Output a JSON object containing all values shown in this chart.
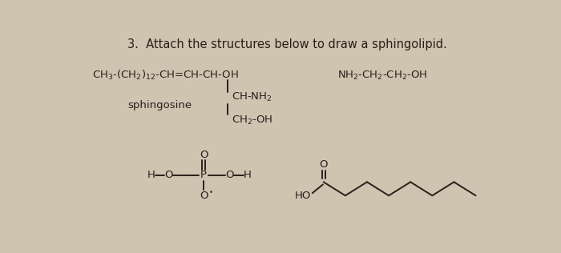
{
  "title": "3.  Attach the structures below to draw a sphingolipid.",
  "bg_color": "#cfc4b0",
  "text_color": "#2a1f1a",
  "title_fontsize": 10.5,
  "label_fontsize": 9.5,
  "sphingosine_label": "sphingosine",
  "ethanolamine": "NH₂-CH₂-CH₂-OH",
  "fatty_acid_label": "HO",
  "line_color": "#2a1f1a",
  "line_width": 1.4
}
